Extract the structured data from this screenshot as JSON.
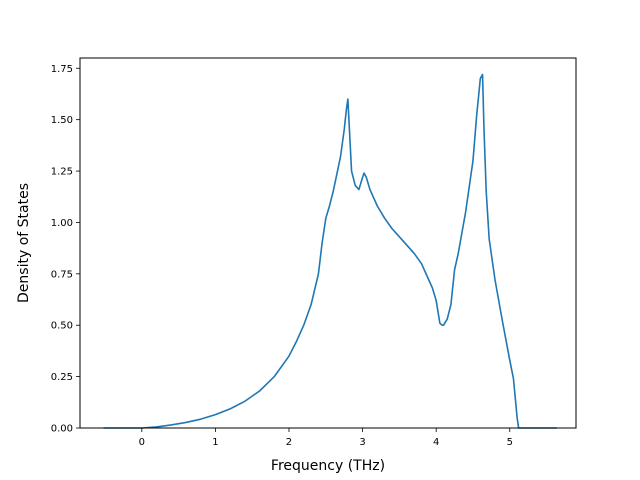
{
  "chart_data": {
    "type": "line",
    "title": "",
    "xlabel": "Frequency (THz)",
    "ylabel": "Density of States",
    "xlim": [
      -0.84,
      5.9
    ],
    "ylim": [
      0,
      1.8
    ],
    "xticks": [
      0,
      1,
      2,
      3,
      4,
      5
    ],
    "yticks": [
      0.0,
      0.25,
      0.5,
      0.75,
      1.0,
      1.25,
      1.5,
      1.75
    ],
    "xtick_labels": [
      "0",
      "1",
      "2",
      "3",
      "4",
      "5"
    ],
    "ytick_labels": [
      "0.00",
      "0.25",
      "0.50",
      "0.75",
      "1.00",
      "1.25",
      "1.50",
      "1.75"
    ],
    "grid": false,
    "legend": "none",
    "series": [
      {
        "color": "#1f77b4",
        "x": [
          -0.52,
          -0.3,
          0.0,
          0.2,
          0.4,
          0.6,
          0.8,
          1.0,
          1.2,
          1.4,
          1.6,
          1.8,
          2.0,
          2.1,
          2.2,
          2.3,
          2.4,
          2.45,
          2.5,
          2.55,
          2.6,
          2.7,
          2.75,
          2.78,
          2.8,
          2.85,
          2.9,
          2.95,
          3.0,
          3.02,
          3.05,
          3.1,
          3.2,
          3.3,
          3.4,
          3.5,
          3.6,
          3.7,
          3.8,
          3.9,
          3.95,
          4.0,
          4.05,
          4.08,
          4.1,
          4.15,
          4.2,
          4.25,
          4.3,
          4.4,
          4.5,
          4.55,
          4.6,
          4.63,
          4.65,
          4.68,
          4.72,
          4.8,
          4.9,
          5.0,
          5.05,
          5.1,
          5.12,
          5.3,
          5.64
        ],
        "y": [
          0.0,
          0.0,
          0.0,
          0.005,
          0.015,
          0.027,
          0.043,
          0.065,
          0.093,
          0.13,
          0.18,
          0.25,
          0.35,
          0.42,
          0.5,
          0.6,
          0.75,
          0.9,
          1.02,
          1.08,
          1.15,
          1.32,
          1.45,
          1.55,
          1.6,
          1.25,
          1.18,
          1.16,
          1.22,
          1.24,
          1.22,
          1.16,
          1.08,
          1.02,
          0.97,
          0.93,
          0.89,
          0.85,
          0.8,
          0.72,
          0.68,
          0.62,
          0.51,
          0.5,
          0.5,
          0.53,
          0.6,
          0.77,
          0.85,
          1.05,
          1.3,
          1.52,
          1.7,
          1.72,
          1.45,
          1.15,
          0.92,
          0.72,
          0.52,
          0.33,
          0.24,
          0.05,
          0.0,
          0.0,
          0.0
        ]
      }
    ]
  }
}
